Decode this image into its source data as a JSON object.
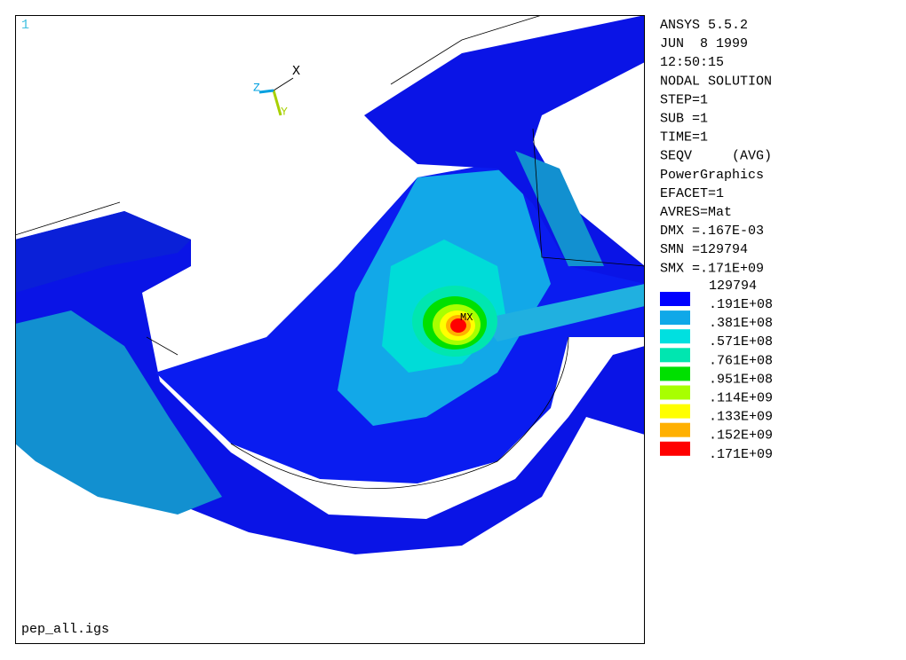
{
  "window_number": "1",
  "triad": {
    "x": "X",
    "y": "Y",
    "z": "Z"
  },
  "max_marker": "MX",
  "info": [
    "ANSYS 5.5.2",
    "JUN  8 1999",
    "12:50:15",
    "NODAL SOLUTION",
    "STEP=1",
    "SUB =1",
    "TIME=1",
    "SEQV     (AVG)",
    "PowerGraphics",
    "EFACET=1",
    "AVRES=Mat",
    "DMX =.167E-03",
    "SMN =129794",
    "SMX =.171E+09"
  ],
  "legend": {
    "min_label": "129794",
    "items": [
      {
        "color": "#0000ff",
        "label": ".191E+08"
      },
      {
        "color": "#10a8e8",
        "label": ".381E+08"
      },
      {
        "color": "#00e0e0",
        "label": ".571E+08"
      },
      {
        "color": "#00e6b0",
        "label": ".761E+08"
      },
      {
        "color": "#00e000",
        "label": ".951E+08"
      },
      {
        "color": "#a8ff00",
        "label": ".114E+09"
      },
      {
        "color": "#ffff00",
        "label": ".133E+09"
      },
      {
        "color": "#ffb000",
        "label": ".152E+09"
      },
      {
        "color": "#ff0000",
        "label": ".171E+09"
      }
    ]
  },
  "file_name": "pep_all.igs"
}
